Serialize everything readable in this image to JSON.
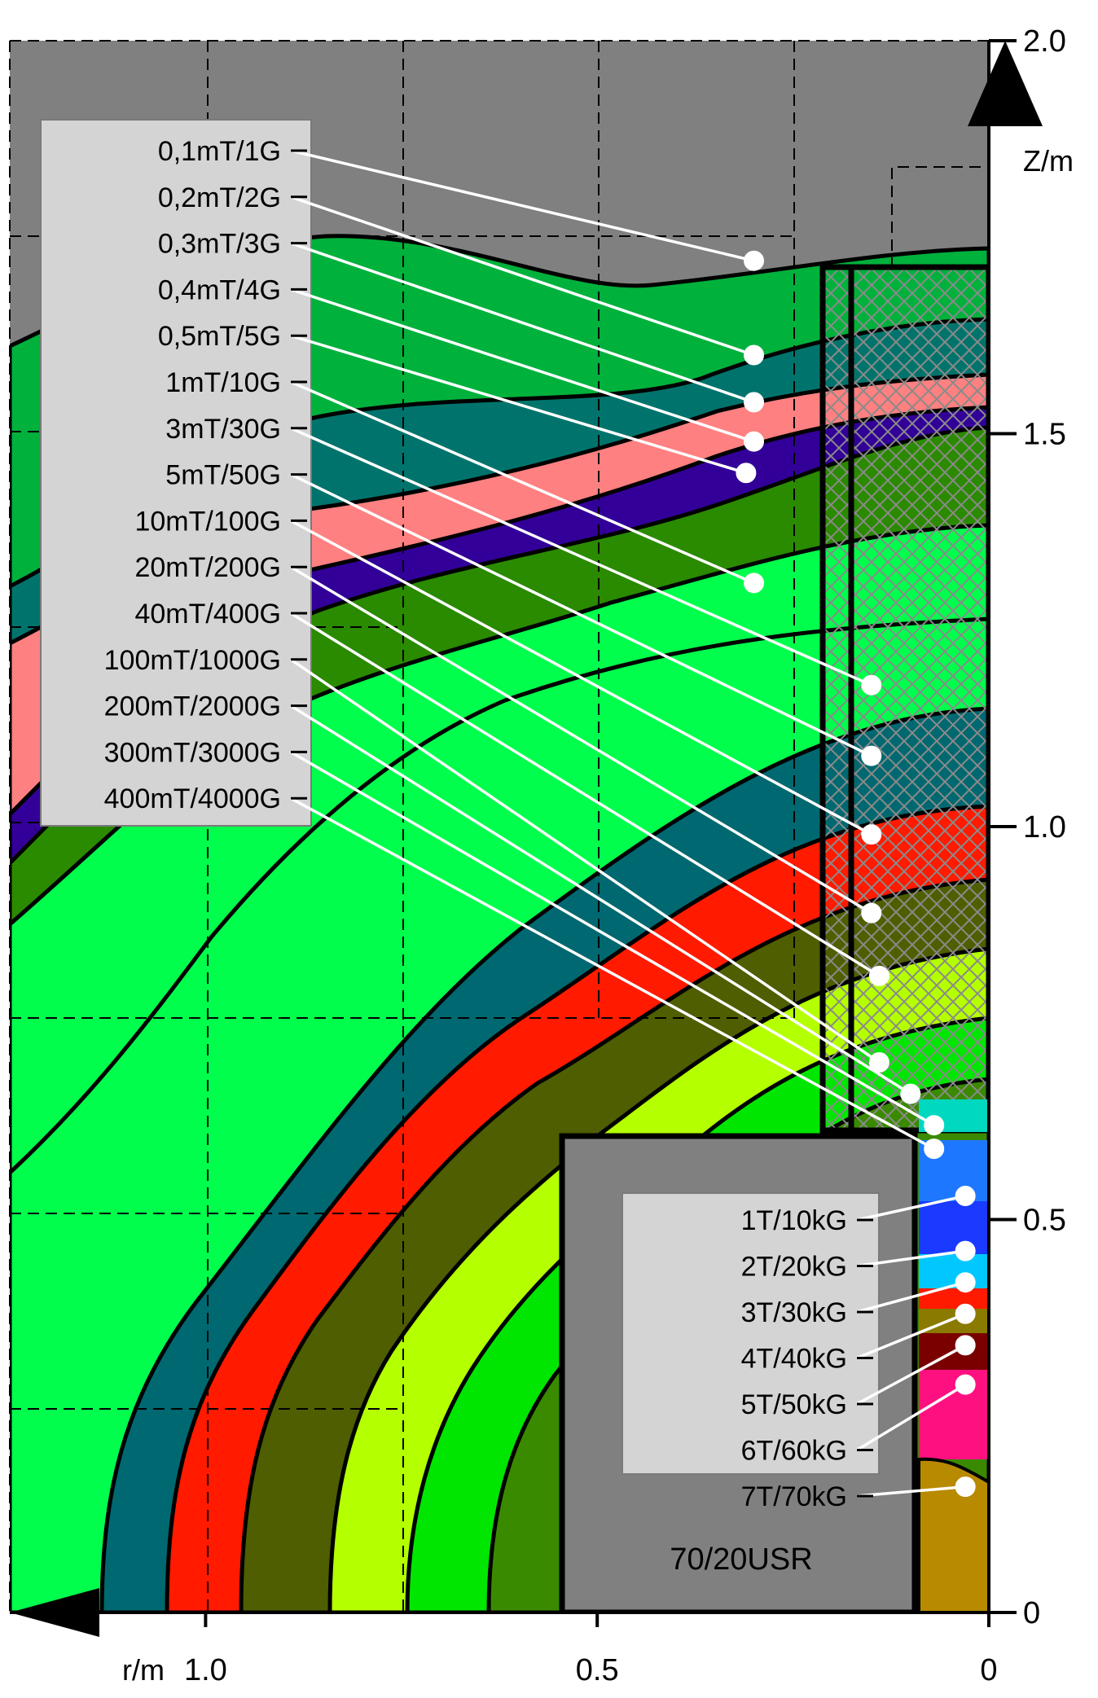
{
  "chart_data": {
    "type": "contour",
    "title": "",
    "xlabel": "r/m",
    "ylabel": "Z/m",
    "xlim": [
      1.25,
      0
    ],
    "ylim": [
      0,
      2.0
    ],
    "x_ticks": [
      {
        "value": 1.0,
        "label": "1.0"
      },
      {
        "value": 0.5,
        "label": "0.5"
      },
      {
        "value": 0,
        "label": "0"
      }
    ],
    "y_ticks": [
      {
        "value": 2.0,
        "label": "2.0"
      },
      {
        "value": 1.5,
        "label": "1.5"
      },
      {
        "value": 1.0,
        "label": "1.0"
      },
      {
        "value": 0.5,
        "label": "0.5"
      },
      {
        "value": 0,
        "label": "0"
      }
    ],
    "magnet_label": "70/20USR",
    "legend_outer": [
      {
        "label": "0,1mT/1G",
        "pointer": [
          0.3,
          1.72
        ]
      },
      {
        "label": "0,2mT/2G",
        "pointer": [
          0.3,
          1.6
        ]
      },
      {
        "label": "0,3mT/3G",
        "pointer": [
          0.3,
          1.54
        ]
      },
      {
        "label": "0,4mT/4G",
        "pointer": [
          0.3,
          1.49
        ]
      },
      {
        "label": "0,5mT/5G",
        "pointer": [
          0.31,
          1.45
        ]
      },
      {
        "label": "1mT/10G",
        "pointer": [
          0.3,
          1.31
        ]
      },
      {
        "label": "3mT/30G",
        "pointer": [
          0.15,
          1.18
        ]
      },
      {
        "label": "5mT/50G",
        "pointer": [
          0.15,
          1.09
        ]
      },
      {
        "label": "10mT/100G",
        "pointer": [
          0.15,
          0.99
        ]
      },
      {
        "label": "20mT/200G",
        "pointer": [
          0.15,
          0.89
        ]
      },
      {
        "label": "40mT/400G",
        "pointer": [
          0.14,
          0.81
        ]
      },
      {
        "label": "100mT/1000G",
        "pointer": [
          0.14,
          0.7
        ]
      },
      {
        "label": "200mT/2000G",
        "pointer": [
          0.1,
          0.66
        ]
      },
      {
        "label": "300mT/3000G",
        "pointer": [
          0.07,
          0.62
        ]
      },
      {
        "label": "400mT/4000G",
        "pointer": [
          0.07,
          0.59
        ]
      }
    ],
    "legend_inner": [
      {
        "label": "1T/10kG",
        "pointer": [
          0.03,
          0.53
        ]
      },
      {
        "label": "2T/20kG",
        "pointer": [
          0.03,
          0.46
        ]
      },
      {
        "label": "3T/30kG",
        "pointer": [
          0.03,
          0.42
        ]
      },
      {
        "label": "4T/40kG",
        "pointer": [
          0.03,
          0.38
        ]
      },
      {
        "label": "5T/50kG",
        "pointer": [
          0.03,
          0.34
        ]
      },
      {
        "label": "6T/60kG",
        "pointer": [
          0.03,
          0.29
        ]
      },
      {
        "label": "7T/70kG",
        "pointer": [
          0.03,
          0.16
        ]
      }
    ]
  }
}
